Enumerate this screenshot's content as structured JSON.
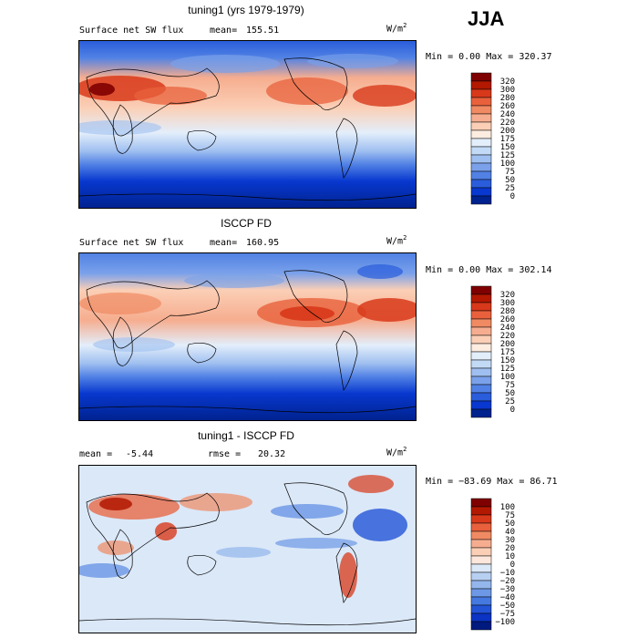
{
  "season": "JJA",
  "panels": [
    {
      "title": "tuning1 (yrs 1979-1979)",
      "subtitle": "Surface net SW flux",
      "stat_label": "mean=",
      "stat_value": "155.51",
      "units": "W/m",
      "units_sup": "2",
      "range_text": "Min =    0.00 Max = 320.37",
      "colorbar": {
        "labels": [
          "320",
          "300",
          "280",
          "260",
          "240",
          "220",
          "200",
          "175",
          "150",
          "125",
          "100",
          "75",
          "50",
          "25",
          "0"
        ],
        "colors": [
          "#7f0000",
          "#b31800",
          "#d8391a",
          "#e8613c",
          "#f08a63",
          "#f6ad8f",
          "#fbcfb6",
          "#fdece0",
          "#e3eefb",
          "#c3daf6",
          "#9fbff0",
          "#7aa1ea",
          "#5181e4",
          "#2a5ddb",
          "#0838cf",
          "#00228f"
        ]
      }
    },
    {
      "title": "ISCCP FD",
      "subtitle": "Surface net SW flux",
      "stat_label": "mean=",
      "stat_value": "160.95",
      "units": "W/m",
      "units_sup": "2",
      "range_text": "Min =    0.00 Max = 302.14",
      "colorbar": {
        "labels": [
          "320",
          "300",
          "280",
          "260",
          "240",
          "220",
          "200",
          "175",
          "150",
          "125",
          "100",
          "75",
          "50",
          "25",
          "0"
        ],
        "colors": [
          "#7f0000",
          "#b31800",
          "#d8391a",
          "#e8613c",
          "#f08a63",
          "#f6ad8f",
          "#fbcfb6",
          "#fdece0",
          "#e3eefb",
          "#c3daf6",
          "#9fbff0",
          "#7aa1ea",
          "#5181e4",
          "#2a5ddb",
          "#0838cf",
          "#00228f"
        ]
      }
    },
    {
      "title": "tuning1 - ISCCP FD",
      "stat_label": "mean =",
      "stat_value": "-5.44",
      "rmse_label": "rmse =",
      "rmse_value": "20.32",
      "units": "W/m",
      "units_sup": "2",
      "range_text": "Min = −83.69 Max =  86.71",
      "colorbar": {
        "labels": [
          "100",
          "75",
          "50",
          "40",
          "30",
          "20",
          "10",
          "0",
          "−10",
          "−20",
          "−30",
          "−40",
          "−50",
          "−75",
          "−100"
        ],
        "colors": [
          "#7f0000",
          "#b31800",
          "#d8391a",
          "#e8613c",
          "#f08a63",
          "#f6ad8f",
          "#fbcfb6",
          "#fde7dc",
          "#dbe8f8",
          "#b7d0f2",
          "#93b6ec",
          "#6d98e6",
          "#4579df",
          "#2354d6",
          "#0b33c4",
          "#001a80"
        ]
      }
    }
  ],
  "chart_data": [
    {
      "type": "heatmap",
      "title": "tuning1 (yrs 1979-1979)",
      "subtitle": "Surface net SW flux",
      "units": "W/m2",
      "mean": 155.51,
      "min": 0.0,
      "max": 320.37,
      "contour_levels": [
        0,
        25,
        50,
        75,
        100,
        125,
        150,
        175,
        200,
        220,
        240,
        260,
        280,
        300,
        320
      ]
    },
    {
      "type": "heatmap",
      "title": "ISCCP FD",
      "subtitle": "Surface net SW flux",
      "units": "W/m2",
      "mean": 160.95,
      "min": 0.0,
      "max": 302.14,
      "contour_levels": [
        0,
        25,
        50,
        75,
        100,
        125,
        150,
        175,
        200,
        220,
        240,
        260,
        280,
        300,
        320
      ]
    },
    {
      "type": "heatmap",
      "title": "tuning1 - ISCCP FD",
      "units": "W/m2",
      "mean": -5.44,
      "rmse": 20.32,
      "min": -83.69,
      "max": 86.71,
      "contour_levels": [
        -100,
        -75,
        -50,
        -40,
        -30,
        -20,
        -10,
        0,
        10,
        20,
        30,
        40,
        50,
        75,
        100
      ]
    }
  ]
}
